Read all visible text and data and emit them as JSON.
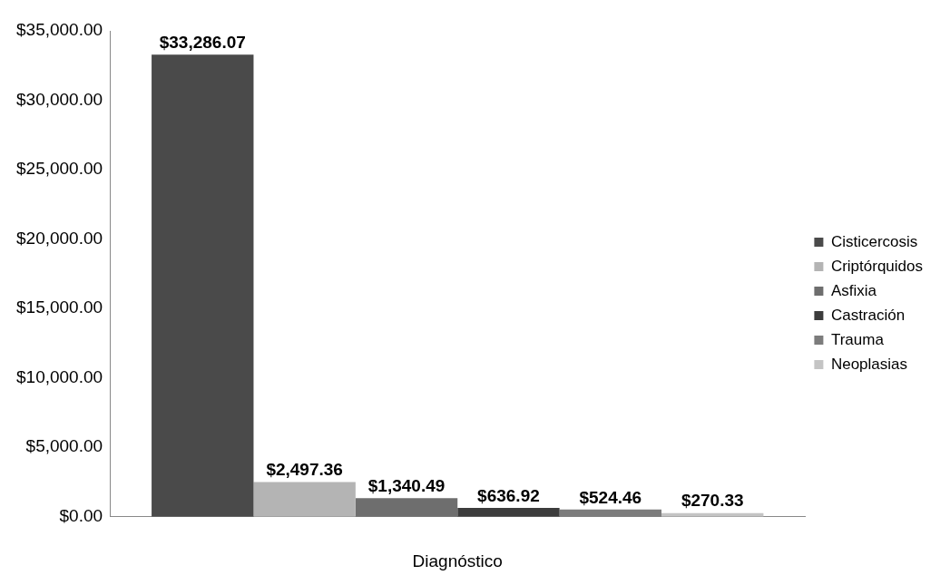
{
  "chart_data": {
    "type": "bar",
    "xlabel": "Diagnóstico",
    "categories": [
      null
    ],
    "series": [
      {
        "name": "Cisticercosis",
        "color": "#4a4a4a",
        "values": [
          33286.07
        ],
        "value_labels": [
          "$33,286.07"
        ]
      },
      {
        "name": "Criptórquidos",
        "color": "#b4b4b4",
        "values": [
          2497.36
        ],
        "value_labels": [
          "$2,497.36"
        ]
      },
      {
        "name": "Asfixia",
        "color": "#6e6e6e",
        "values": [
          1340.49
        ],
        "value_labels": [
          "$1,340.49"
        ]
      },
      {
        "name": "Castración",
        "color": "#3c3c3c",
        "values": [
          636.92
        ],
        "value_labels": [
          "$636.92"
        ]
      },
      {
        "name": "Trauma",
        "color": "#7c7c7c",
        "values": [
          524.46
        ],
        "value_labels": [
          "$524.46"
        ]
      },
      {
        "name": "Neoplasias",
        "color": "#c4c4c4",
        "values": [
          270.33
        ],
        "value_labels": [
          "$270.33"
        ]
      }
    ],
    "ylim": [
      0,
      35000
    ],
    "yticks": [
      {
        "value": 0,
        "label": "$0.00"
      },
      {
        "value": 5000,
        "label": "$5,000.00"
      },
      {
        "value": 10000,
        "label": "$10,000.00"
      },
      {
        "value": 15000,
        "label": "$15,000.00"
      },
      {
        "value": 20000,
        "label": "$20,000.00"
      },
      {
        "value": 25000,
        "label": "$25,000.00"
      },
      {
        "value": 30000,
        "label": "$30,000.00"
      },
      {
        "value": 35000,
        "label": "$35,000.00"
      }
    ],
    "grid": false,
    "legend": "right"
  }
}
